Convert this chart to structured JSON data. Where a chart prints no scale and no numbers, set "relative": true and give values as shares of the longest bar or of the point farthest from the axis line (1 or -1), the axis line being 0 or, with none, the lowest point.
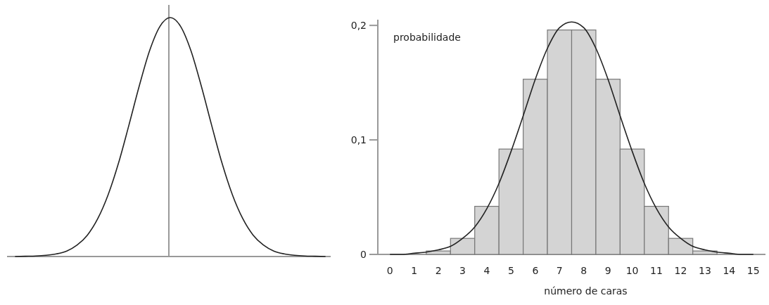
{
  "chart_data": [
    {
      "type": "line",
      "relative": true,
      "color": "#222222",
      "categories": [
        null,
        null,
        null,
        null,
        null,
        null,
        null,
        null,
        null,
        null,
        null,
        null,
        null,
        null,
        null,
        null,
        null,
        null,
        null,
        null,
        null,
        null,
        null,
        null,
        null,
        null,
        null,
        null,
        null,
        null,
        null
      ],
      "values": [
        0,
        0.001,
        0.002,
        0.005,
        0.011,
        0.023,
        0.048,
        0.09,
        0.159,
        0.259,
        0.391,
        0.549,
        0.713,
        0.861,
        0.963,
        1,
        0.963,
        0.861,
        0.713,
        0.549,
        0.391,
        0.259,
        0.159,
        0.09,
        0.048,
        0.023,
        0.011,
        0.005,
        0.002,
        0.001,
        0
      ]
    },
    {
      "type": "bar",
      "ylabel": "probabilidade",
      "xlabel": "número de caras",
      "x": [
        0,
        1,
        2,
        3,
        4,
        5,
        6,
        7,
        8,
        9,
        10,
        11,
        12,
        13,
        14,
        15
      ],
      "xlim": [
        -0.5,
        15.5
      ],
      "xticks": [
        0,
        1,
        2,
        3,
        4,
        5,
        6,
        7,
        8,
        9,
        10,
        11,
        12,
        13,
        14,
        15
      ],
      "ylim": [
        0,
        0.205
      ],
      "yticks": [
        0,
        {
          "value": 0.1,
          "label": "0,1"
        },
        {
          "value": 0.2,
          "label": "0,2"
        }
      ],
      "series": [
        {
          "color": "#d4d4d4",
          "values": [
            0,
            0,
            0.003,
            0.014,
            0.042,
            0.092,
            0.153,
            0.196,
            0.196,
            0.153,
            0.092,
            0.042,
            0.014,
            0.003,
            0,
            0
          ]
        },
        {
          "type": "line",
          "color": "#222222",
          "x": [
            0,
            0.5,
            1,
            1.5,
            2,
            2.5,
            3,
            3.5,
            4,
            4.5,
            5,
            5.5,
            6,
            6.5,
            7,
            7.5,
            8,
            8.5,
            9,
            9.5,
            10,
            10.5,
            11,
            11.5,
            12,
            12.5,
            13,
            13.5,
            14,
            14.5,
            15
          ],
          "values": [
            0,
            0,
            0.001,
            0.002,
            0.004,
            0.007,
            0.014,
            0.024,
            0.04,
            0.062,
            0.09,
            0.121,
            0.153,
            0.18,
            0.198,
            0.203,
            0.198,
            0.18,
            0.153,
            0.121,
            0.09,
            0.062,
            0.04,
            0.024,
            0.014,
            0.007,
            0.004,
            0.002,
            0.001,
            0,
            0
          ]
        }
      ]
    }
  ]
}
